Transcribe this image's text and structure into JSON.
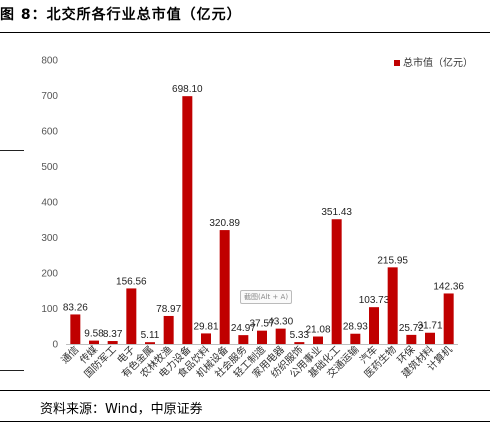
{
  "figure": {
    "title": "图 8：北交所各行业总市值（亿元）",
    "source": "资料来源：Wind，中原证券",
    "overlay_text": "截图(Alt + A)"
  },
  "chart_data": {
    "type": "bar",
    "title": "",
    "xlabel": "",
    "ylabel": "",
    "ylim": [
      0,
      800
    ],
    "yticks": [
      0,
      100,
      200,
      300,
      400,
      500,
      600,
      700,
      800
    ],
    "legend_position": "top-right",
    "grid": false,
    "color": "#c00000",
    "categories": [
      "通信",
      "传媒",
      "国防军工",
      "电子",
      "有色金属",
      "农林牧渔",
      "电力设备",
      "食品饮料",
      "机械设备",
      "社会服务",
      "轻工制造",
      "家用电器",
      "纺织服饰",
      "公用事业",
      "基础化工",
      "交通运输",
      "汽车",
      "医药生物",
      "环保",
      "建筑材料",
      "计算机"
    ],
    "series": [
      {
        "name": "总市值（亿元）",
        "values": [
          83.26,
          9.58,
          8.37,
          156.56,
          5.11,
          78.97,
          698.1,
          29.81,
          320.89,
          24.97,
          37.57,
          43.3,
          5.33,
          21.08,
          351.43,
          28.93,
          103.73,
          215.95,
          25.72,
          31.71,
          142.36
        ],
        "labels": [
          "83.26",
          "9.58",
          "8.37",
          "156.56",
          "5.11",
          "78.97",
          "698.10",
          "29.81",
          "320.89",
          "24.97",
          "37.57",
          "43.30",
          "5.33",
          "21.08",
          "351.43",
          "28.93",
          "103.73",
          "215.95",
          "25.72",
          "31.71",
          "142.36"
        ]
      }
    ]
  }
}
